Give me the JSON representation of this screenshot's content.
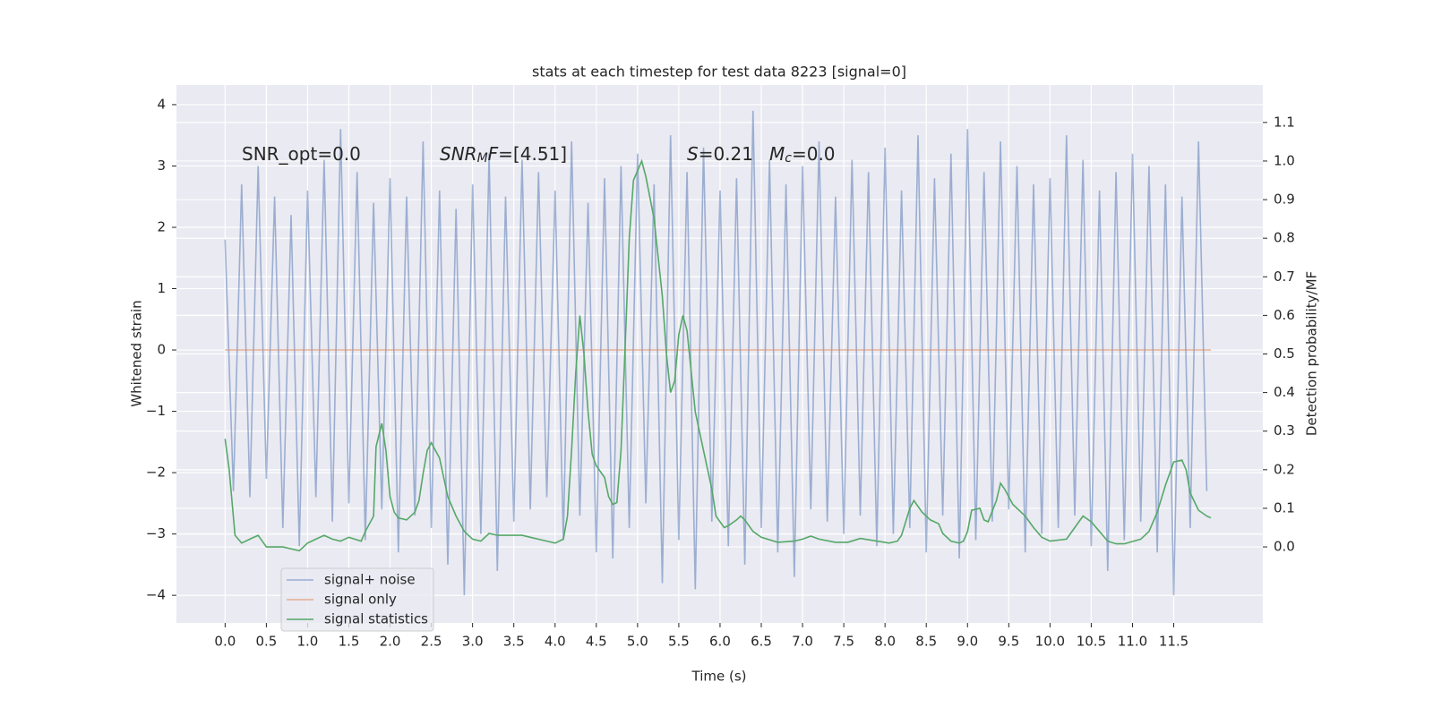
{
  "chart_data": {
    "type": "line",
    "title": "stats at each timestep for test data 8223 [signal=0]",
    "xlabel": "Time (s)",
    "ylabel": "Whitened strain",
    "y2label": "Detection probability/MF",
    "background": "#eaeaf2",
    "grid": true,
    "legend": "lower left",
    "xlim": [
      -0.59,
      12.58
    ],
    "ylim": [
      -4.45,
      4.32
    ],
    "y2lim": [
      -0.197,
      1.197
    ],
    "xticks": [
      {
        "value": 0,
        "label": "0.0"
      },
      0.5,
      {
        "value": 1,
        "label": "1.0"
      },
      1.5,
      {
        "value": 2,
        "label": "2.0"
      },
      2.5,
      {
        "value": 3,
        "label": "3.0"
      },
      3.5,
      {
        "value": 4,
        "label": "4.0"
      },
      4.5,
      {
        "value": 5,
        "label": "5.0"
      },
      5.5,
      {
        "value": 6,
        "label": "6.0"
      },
      6.5,
      {
        "value": 7,
        "label": "7.0"
      },
      7.5,
      {
        "value": 8,
        "label": "8.0"
      },
      8.5,
      {
        "value": 9,
        "label": "9.0"
      },
      9.5,
      {
        "value": 10,
        "label": "10.0"
      },
      10.5,
      {
        "value": 11,
        "label": "11.0"
      },
      11.5
    ],
    "yticks": [
      {
        "value": -4,
        "label": "−4"
      },
      {
        "value": -3,
        "label": "−3"
      },
      {
        "value": -2,
        "label": "−2"
      },
      {
        "value": -1,
        "label": "−1"
      },
      0,
      1,
      2,
      3,
      4
    ],
    "y2ticks": [
      {
        "value": 0,
        "label": "0.0"
      },
      0.1,
      0.2,
      0.3,
      0.4,
      0.5,
      0.6,
      0.7,
      0.8,
      0.9,
      {
        "value": 1,
        "label": "1.0"
      },
      1.1
    ],
    "annotations": [
      [
        {
          "text": "SNR_opt=0.0",
          "italic": false,
          "sub": false
        }
      ],
      [
        {
          "text": "SNR",
          "italic": true,
          "sub": false
        },
        {
          "text": "M",
          "italic": true,
          "sub": true
        },
        {
          "text": "F",
          "italic": true,
          "sub": false
        },
        {
          "text": "=[4.51]",
          "italic": false,
          "sub": false
        }
      ],
      [
        {
          "text": "S",
          "italic": true,
          "sub": false
        },
        {
          "text": "=0.21",
          "italic": false,
          "sub": false
        }
      ],
      [
        {
          "text": "M",
          "italic": true,
          "sub": false
        },
        {
          "text": "c",
          "italic": true,
          "sub": true
        },
        {
          "text": "=0.0",
          "italic": false,
          "sub": false
        }
      ]
    ],
    "series": [
      {
        "name": "signal+ noise",
        "color": "#4c72b0",
        "opacity": 0.5,
        "x": [
          0,
          0.1,
          0.2,
          0.3,
          0.4,
          0.5,
          0.6,
          0.7,
          0.8,
          0.9,
          1,
          1.1,
          1.2,
          1.3,
          1.4,
          1.5,
          1.6,
          1.7,
          1.8,
          1.9,
          2,
          2.1,
          2.2,
          2.3,
          2.4,
          2.5,
          2.6,
          2.7,
          2.8,
          2.9,
          3,
          3.1,
          3.2,
          3.3,
          3.4,
          3.5,
          3.6,
          3.7,
          3.8,
          3.9,
          4,
          4.1,
          4.2,
          4.3,
          4.4,
          4.5,
          4.6,
          4.7,
          4.8,
          4.9,
          5,
          5.1,
          5.2,
          5.3,
          5.4,
          5.5,
          5.6,
          5.7,
          5.8,
          5.9,
          6,
          6.1,
          6.2,
          6.3,
          6.4,
          6.5,
          6.6,
          6.7,
          6.8,
          6.9,
          7,
          7.1,
          7.2,
          7.3,
          7.4,
          7.5,
          7.6,
          7.7,
          7.8,
          7.9,
          8,
          8.1,
          8.2,
          8.3,
          8.4,
          8.5,
          8.6,
          8.7,
          8.8,
          8.9,
          9,
          9.1,
          9.2,
          9.3,
          9.4,
          9.5,
          9.6,
          9.7,
          9.8,
          9.9,
          10,
          10.1,
          10.2,
          10.3,
          10.4,
          10.5,
          10.6,
          10.7,
          10.8,
          10.9,
          11,
          11.1,
          11.2,
          11.3,
          11.4,
          11.5,
          11.6,
          11.7,
          11.8,
          11.9
        ],
        "values": [
          1.8,
          -2.3,
          2.7,
          -2.4,
          3.0,
          -2.1,
          2.5,
          -2.9,
          2.2,
          -3.2,
          2.6,
          -2.4,
          3.1,
          -2.8,
          3.6,
          -2.5,
          2.9,
          -3.1,
          2.4,
          -2.6,
          2.8,
          -3.3,
          2.5,
          -2.7,
          3.4,
          -2.9,
          2.6,
          -3.5,
          2.3,
          -4.0,
          2.7,
          -3.0,
          3.2,
          -3.6,
          2.5,
          -2.8,
          3.1,
          -2.6,
          2.9,
          -2.4,
          2.6,
          -3.1,
          3.4,
          -2.7,
          2.4,
          -3.3,
          2.8,
          -3.4,
          3.0,
          -2.9,
          3.2,
          -2.5,
          2.7,
          -3.8,
          3.5,
          -3.1,
          2.9,
          -3.9,
          3.3,
          -2.8,
          2.6,
          -3.2,
          2.8,
          -3.5,
          3.9,
          -2.9,
          3.1,
          -3.3,
          2.7,
          -3.7,
          3.0,
          -2.6,
          3.4,
          -2.8,
          2.5,
          -3.0,
          3.1,
          -2.7,
          2.9,
          -3.2,
          3.3,
          -3.0,
          2.6,
          -2.9,
          3.5,
          -3.3,
          2.8,
          -2.7,
          3.2,
          -3.4,
          3.6,
          -3.1,
          2.9,
          -2.8,
          3.4,
          -2.6,
          3.0,
          -3.3,
          2.7,
          -3.0,
          2.8,
          -2.9,
          3.5,
          -2.7,
          3.1,
          -3.2,
          2.6,
          -3.6,
          2.9,
          -3.1,
          3.2,
          -2.8,
          3.0,
          -3.3,
          2.7,
          -4.0,
          2.5,
          -2.9,
          3.4,
          -2.3
        ]
      },
      {
        "name": "signal only",
        "color": "#dd8452",
        "opacity": 0.6,
        "x": [
          0,
          11.95
        ],
        "values": [
          0,
          0
        ]
      },
      {
        "name": "signal statistics",
        "color": "#55a868",
        "opacity": 1,
        "axis": "y2",
        "x": [
          0,
          0.05,
          0.12,
          0.2,
          0.3,
          0.4,
          0.5,
          0.7,
          0.9,
          1,
          1.1,
          1.2,
          1.3,
          1.4,
          1.5,
          1.65,
          1.7,
          1.8,
          1.83,
          1.9,
          1.95,
          2,
          2.05,
          2.1,
          2.2,
          2.3,
          2.35,
          2.4,
          2.45,
          2.5,
          2.6,
          2.7,
          2.8,
          2.9,
          3,
          3.1,
          3.2,
          3.3,
          3.4,
          3.6,
          3.7,
          3.9,
          4,
          4.1,
          4.15,
          4.2,
          4.25,
          4.3,
          4.35,
          4.4,
          4.45,
          4.5,
          4.6,
          4.65,
          4.7,
          4.75,
          4.8,
          4.85,
          4.9,
          4.95,
          5.05,
          5.1,
          5.2,
          5.3,
          5.35,
          5.4,
          5.45,
          5.5,
          5.55,
          5.6,
          5.7,
          5.8,
          5.9,
          5.95,
          6.05,
          6.1,
          6.2,
          6.25,
          6.3,
          6.4,
          6.5,
          6.7,
          6.9,
          7,
          7.1,
          7.2,
          7.4,
          7.55,
          7.7,
          7.9,
          8.05,
          8.15,
          8.2,
          8.3,
          8.35,
          8.45,
          8.55,
          8.65,
          8.7,
          8.8,
          8.9,
          8.95,
          9,
          9.05,
          9.15,
          9.2,
          9.25,
          9.35,
          9.4,
          9.45,
          9.55,
          9.7,
          9.8,
          9.9,
          10,
          10.2,
          10.3,
          10.4,
          10.5,
          10.6,
          10.7,
          10.8,
          10.9,
          11.1,
          11.2,
          11.3,
          11.4,
          11.5,
          11.6,
          11.65,
          11.7,
          11.8,
          11.9,
          11.95
        ],
        "values": [
          0.28,
          0.2,
          0.03,
          0.01,
          0.02,
          0.03,
          0.0,
          0.0,
          -0.01,
          0.01,
          0.02,
          0.03,
          0.02,
          0.015,
          0.025,
          0.015,
          0.04,
          0.08,
          0.26,
          0.32,
          0.25,
          0.13,
          0.09,
          0.075,
          0.07,
          0.09,
          0.12,
          0.19,
          0.25,
          0.27,
          0.23,
          0.13,
          0.08,
          0.04,
          0.02,
          0.015,
          0.035,
          0.03,
          0.03,
          0.03,
          0.025,
          0.015,
          0.01,
          0.02,
          0.08,
          0.25,
          0.45,
          0.6,
          0.5,
          0.35,
          0.24,
          0.21,
          0.18,
          0.13,
          0.11,
          0.115,
          0.25,
          0.52,
          0.8,
          0.95,
          1.0,
          0.96,
          0.85,
          0.65,
          0.5,
          0.4,
          0.43,
          0.55,
          0.6,
          0.56,
          0.35,
          0.25,
          0.15,
          0.08,
          0.05,
          0.055,
          0.07,
          0.08,
          0.07,
          0.04,
          0.025,
          0.012,
          0.015,
          0.02,
          0.028,
          0.02,
          0.012,
          0.012,
          0.022,
          0.015,
          0.01,
          0.015,
          0.03,
          0.1,
          0.12,
          0.09,
          0.07,
          0.06,
          0.035,
          0.015,
          0.01,
          0.015,
          0.04,
          0.095,
          0.1,
          0.07,
          0.065,
          0.12,
          0.165,
          0.15,
          0.11,
          0.08,
          0.05,
          0.025,
          0.015,
          0.02,
          0.05,
          0.08,
          0.065,
          0.04,
          0.015,
          0.008,
          0.008,
          0.02,
          0.04,
          0.09,
          0.16,
          0.22,
          0.225,
          0.2,
          0.14,
          0.095,
          0.08,
          0.075
        ]
      }
    ]
  }
}
